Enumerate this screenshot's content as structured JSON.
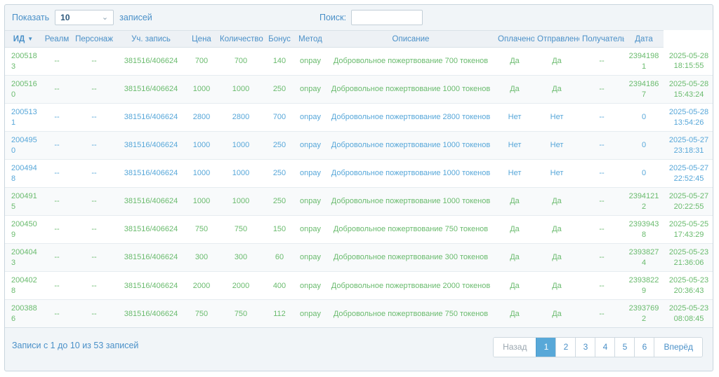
{
  "controls": {
    "length_label_before": "Показать",
    "length_value": "10",
    "length_label_after": "записей",
    "search_label": "Поиск:",
    "search_value": ""
  },
  "table": {
    "columns": [
      {
        "key": "id",
        "label": "ИД",
        "sorted": "desc"
      },
      {
        "key": "realm",
        "label": "Реалм"
      },
      {
        "key": "character",
        "label": "Персонаж"
      },
      {
        "key": "account",
        "label": "Уч. запись"
      },
      {
        "key": "price",
        "label": "Цена"
      },
      {
        "key": "quantity",
        "label": "Количество"
      },
      {
        "key": "bonus",
        "label": "Бонус"
      },
      {
        "key": "method",
        "label": "Метод"
      },
      {
        "key": "description",
        "label": "Описание"
      },
      {
        "key": "paid",
        "label": "Оплачено"
      },
      {
        "key": "sent",
        "label": "Отправлено"
      },
      {
        "key": "recipient",
        "label": "Получатель"
      },
      {
        "key": "date",
        "label": "Дата"
      },
      {
        "key": "datetime",
        "label": ""
      }
    ],
    "rows": [
      {
        "id": "2005183",
        "realm": "--",
        "character": "--",
        "account": "381516/406624",
        "price": "700",
        "quantity": "700",
        "bonus": "140",
        "method": "onpay",
        "description": "Добровольное пожертвование 700 токенов",
        "paid": "Да",
        "sent": "Да",
        "recipient": "--",
        "date": "23941981",
        "datetime": "2025-05-28 18:15:55",
        "status": "paid"
      },
      {
        "id": "2005160",
        "realm": "--",
        "character": "--",
        "account": "381516/406624",
        "price": "1000",
        "quantity": "1000",
        "bonus": "250",
        "method": "onpay",
        "description": "Добровольное пожертвование 1000 токенов",
        "paid": "Да",
        "sent": "Да",
        "recipient": "--",
        "date": "23941867",
        "datetime": "2025-05-28 15:43:24",
        "status": "paid"
      },
      {
        "id": "2005131",
        "realm": "--",
        "character": "--",
        "account": "381516/406624",
        "price": "2800",
        "quantity": "2800",
        "bonus": "700",
        "method": "onpay",
        "description": "Добровольное пожертвование 2800 токенов",
        "paid": "Нет",
        "sent": "Нет",
        "recipient": "--",
        "date": "0",
        "datetime": "2025-05-28 13:54:26",
        "status": "unpaid"
      },
      {
        "id": "2004950",
        "realm": "--",
        "character": "--",
        "account": "381516/406624",
        "price": "1000",
        "quantity": "1000",
        "bonus": "250",
        "method": "onpay",
        "description": "Добровольное пожертвование 1000 токенов",
        "paid": "Нет",
        "sent": "Нет",
        "recipient": "--",
        "date": "0",
        "datetime": "2025-05-27 23:18:31",
        "status": "unpaid"
      },
      {
        "id": "2004948",
        "realm": "--",
        "character": "--",
        "account": "381516/406624",
        "price": "1000",
        "quantity": "1000",
        "bonus": "250",
        "method": "onpay",
        "description": "Добровольное пожертвование 1000 токенов",
        "paid": "Нет",
        "sent": "Нет",
        "recipient": "--",
        "date": "0",
        "datetime": "2025-05-27 22:52:45",
        "status": "unpaid"
      },
      {
        "id": "2004915",
        "realm": "--",
        "character": "--",
        "account": "381516/406624",
        "price": "1000",
        "quantity": "1000",
        "bonus": "250",
        "method": "onpay",
        "description": "Добровольное пожертвование 1000 токенов",
        "paid": "Да",
        "sent": "Да",
        "recipient": "--",
        "date": "23941212",
        "datetime": "2025-05-27 20:22:55",
        "status": "paid"
      },
      {
        "id": "2004509",
        "realm": "--",
        "character": "--",
        "account": "381516/406624",
        "price": "750",
        "quantity": "750",
        "bonus": "150",
        "method": "onpay",
        "description": "Добровольное пожертвование 750 токенов",
        "paid": "Да",
        "sent": "Да",
        "recipient": "--",
        "date": "23939438",
        "datetime": "2025-05-25 17:43:29",
        "status": "paid"
      },
      {
        "id": "2004043",
        "realm": "--",
        "character": "--",
        "account": "381516/406624",
        "price": "300",
        "quantity": "300",
        "bonus": "60",
        "method": "onpay",
        "description": "Добровольное пожертвование 300 токенов",
        "paid": "Да",
        "sent": "Да",
        "recipient": "--",
        "date": "23938274",
        "datetime": "2025-05-23 21:36:06",
        "status": "paid"
      },
      {
        "id": "2004028",
        "realm": "--",
        "character": "--",
        "account": "381516/406624",
        "price": "2000",
        "quantity": "2000",
        "bonus": "400",
        "method": "onpay",
        "description": "Добровольное пожертвование 2000 токенов",
        "paid": "Да",
        "sent": "Да",
        "recipient": "--",
        "date": "23938229",
        "datetime": "2025-05-23 20:36:43",
        "status": "paid"
      },
      {
        "id": "2003886",
        "realm": "--",
        "character": "--",
        "account": "381516/406624",
        "price": "750",
        "quantity": "750",
        "bonus": "112",
        "method": "onpay",
        "description": "Добровольное пожертвование 750 токенов",
        "paid": "Да",
        "sent": "Да",
        "recipient": "--",
        "date": "23937692",
        "datetime": "2025-05-23 08:08:45",
        "status": "paid"
      }
    ]
  },
  "footer": {
    "info": "Записи с 1 до 10 из 53 записей",
    "pagination": {
      "prev": "Назад",
      "pages": [
        "1",
        "2",
        "3",
        "4",
        "5",
        "6"
      ],
      "active_page": "1",
      "next": "Вперёд"
    }
  },
  "icons": {
    "sort_desc": "▼",
    "select_chevron": "⌄"
  },
  "colors": {
    "accent_blue": "#4a90c8",
    "paid_text": "#6abb6e",
    "unpaid_text": "#57a7d9",
    "active_page_bg": "#58a8d8"
  }
}
